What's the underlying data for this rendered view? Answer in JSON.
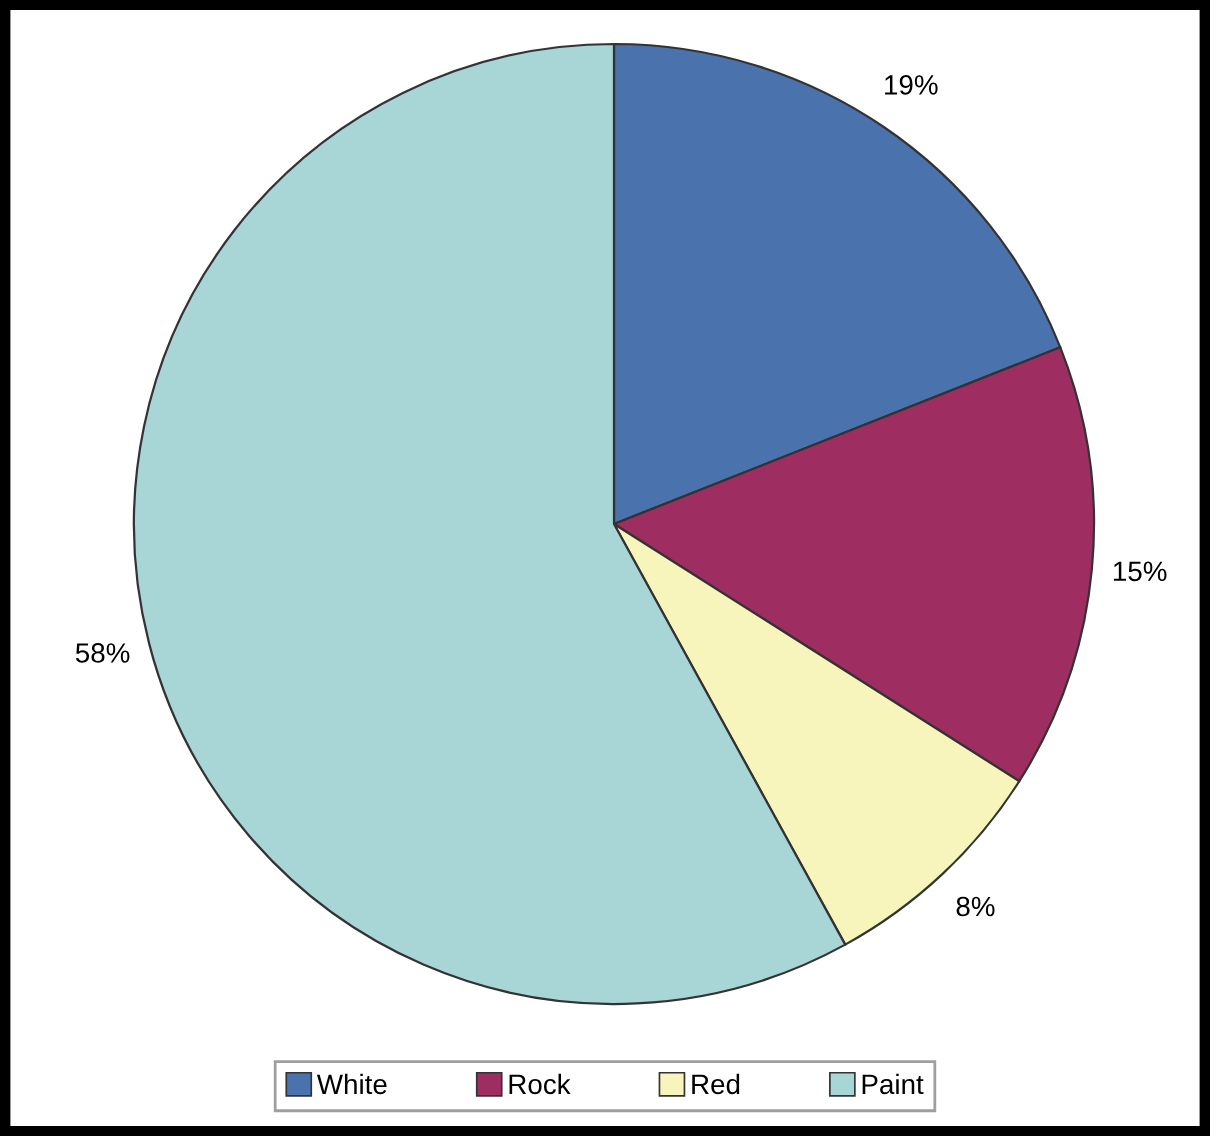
{
  "chart_data": {
    "type": "pie",
    "categories": [
      "White",
      "Rock",
      "Red",
      "Paint"
    ],
    "values": [
      19,
      15,
      8,
      58
    ],
    "value_labels": [
      "19%",
      "15%",
      "8%",
      "58%"
    ],
    "colors": [
      "#4a72ad",
      "#9e2e62",
      "#f7f4bc",
      "#a8d5d6"
    ],
    "legend": "bottom"
  }
}
